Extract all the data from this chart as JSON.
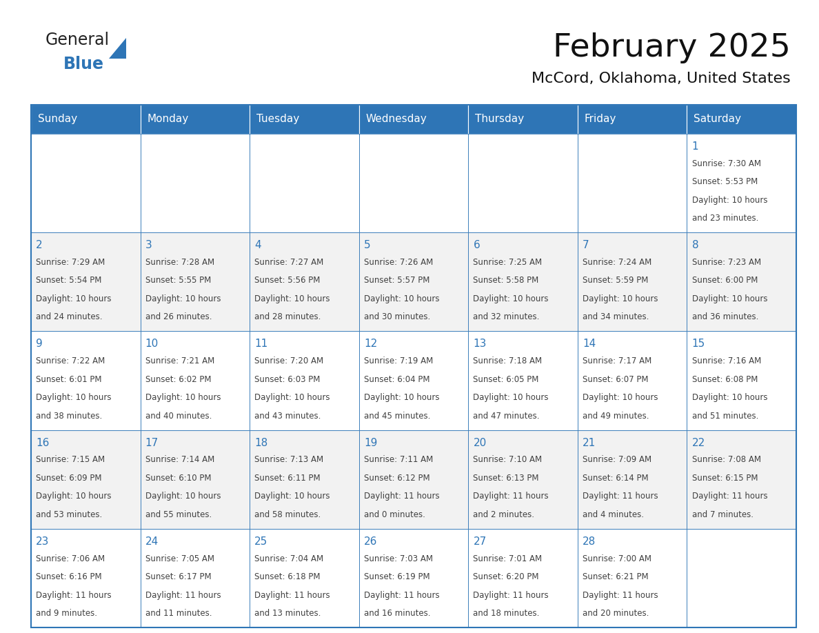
{
  "title": "February 2025",
  "subtitle": "McCord, Oklahoma, United States",
  "header_bg": "#2E75B6",
  "header_text_color": "#FFFFFF",
  "day_names": [
    "Sunday",
    "Monday",
    "Tuesday",
    "Wednesday",
    "Thursday",
    "Friday",
    "Saturday"
  ],
  "row_bg_even": "#DDEEFF",
  "row_bg_light": "#F2F2F2",
  "row_bg_white": "#FFFFFF",
  "cell_border_color": "#2E75B6",
  "text_color": "#404040",
  "day_num_color": "#2E75B6",
  "calendar": [
    [
      null,
      null,
      null,
      null,
      null,
      null,
      {
        "day": 1,
        "sunrise": "7:30 AM",
        "sunset": "5:53 PM",
        "daylight_line1": "10 hours",
        "daylight_line2": "and 23 minutes."
      }
    ],
    [
      {
        "day": 2,
        "sunrise": "7:29 AM",
        "sunset": "5:54 PM",
        "daylight_line1": "10 hours",
        "daylight_line2": "and 24 minutes."
      },
      {
        "day": 3,
        "sunrise": "7:28 AM",
        "sunset": "5:55 PM",
        "daylight_line1": "10 hours",
        "daylight_line2": "and 26 minutes."
      },
      {
        "day": 4,
        "sunrise": "7:27 AM",
        "sunset": "5:56 PM",
        "daylight_line1": "10 hours",
        "daylight_line2": "and 28 minutes."
      },
      {
        "day": 5,
        "sunrise": "7:26 AM",
        "sunset": "5:57 PM",
        "daylight_line1": "10 hours",
        "daylight_line2": "and 30 minutes."
      },
      {
        "day": 6,
        "sunrise": "7:25 AM",
        "sunset": "5:58 PM",
        "daylight_line1": "10 hours",
        "daylight_line2": "and 32 minutes."
      },
      {
        "day": 7,
        "sunrise": "7:24 AM",
        "sunset": "5:59 PM",
        "daylight_line1": "10 hours",
        "daylight_line2": "and 34 minutes."
      },
      {
        "day": 8,
        "sunrise": "7:23 AM",
        "sunset": "6:00 PM",
        "daylight_line1": "10 hours",
        "daylight_line2": "and 36 minutes."
      }
    ],
    [
      {
        "day": 9,
        "sunrise": "7:22 AM",
        "sunset": "6:01 PM",
        "daylight_line1": "10 hours",
        "daylight_line2": "and 38 minutes."
      },
      {
        "day": 10,
        "sunrise": "7:21 AM",
        "sunset": "6:02 PM",
        "daylight_line1": "10 hours",
        "daylight_line2": "and 40 minutes."
      },
      {
        "day": 11,
        "sunrise": "7:20 AM",
        "sunset": "6:03 PM",
        "daylight_line1": "10 hours",
        "daylight_line2": "and 43 minutes."
      },
      {
        "day": 12,
        "sunrise": "7:19 AM",
        "sunset": "6:04 PM",
        "daylight_line1": "10 hours",
        "daylight_line2": "and 45 minutes."
      },
      {
        "day": 13,
        "sunrise": "7:18 AM",
        "sunset": "6:05 PM",
        "daylight_line1": "10 hours",
        "daylight_line2": "and 47 minutes."
      },
      {
        "day": 14,
        "sunrise": "7:17 AM",
        "sunset": "6:07 PM",
        "daylight_line1": "10 hours",
        "daylight_line2": "and 49 minutes."
      },
      {
        "day": 15,
        "sunrise": "7:16 AM",
        "sunset": "6:08 PM",
        "daylight_line1": "10 hours",
        "daylight_line2": "and 51 minutes."
      }
    ],
    [
      {
        "day": 16,
        "sunrise": "7:15 AM",
        "sunset": "6:09 PM",
        "daylight_line1": "10 hours",
        "daylight_line2": "and 53 minutes."
      },
      {
        "day": 17,
        "sunrise": "7:14 AM",
        "sunset": "6:10 PM",
        "daylight_line1": "10 hours",
        "daylight_line2": "and 55 minutes."
      },
      {
        "day": 18,
        "sunrise": "7:13 AM",
        "sunset": "6:11 PM",
        "daylight_line1": "10 hours",
        "daylight_line2": "and 58 minutes."
      },
      {
        "day": 19,
        "sunrise": "7:11 AM",
        "sunset": "6:12 PM",
        "daylight_line1": "11 hours",
        "daylight_line2": "and 0 minutes."
      },
      {
        "day": 20,
        "sunrise": "7:10 AM",
        "sunset": "6:13 PM",
        "daylight_line1": "11 hours",
        "daylight_line2": "and 2 minutes."
      },
      {
        "day": 21,
        "sunrise": "7:09 AM",
        "sunset": "6:14 PM",
        "daylight_line1": "11 hours",
        "daylight_line2": "and 4 minutes."
      },
      {
        "day": 22,
        "sunrise": "7:08 AM",
        "sunset": "6:15 PM",
        "daylight_line1": "11 hours",
        "daylight_line2": "and 7 minutes."
      }
    ],
    [
      {
        "day": 23,
        "sunrise": "7:06 AM",
        "sunset": "6:16 PM",
        "daylight_line1": "11 hours",
        "daylight_line2": "and 9 minutes."
      },
      {
        "day": 24,
        "sunrise": "7:05 AM",
        "sunset": "6:17 PM",
        "daylight_line1": "11 hours",
        "daylight_line2": "and 11 minutes."
      },
      {
        "day": 25,
        "sunrise": "7:04 AM",
        "sunset": "6:18 PM",
        "daylight_line1": "11 hours",
        "daylight_line2": "and 13 minutes."
      },
      {
        "day": 26,
        "sunrise": "7:03 AM",
        "sunset": "6:19 PM",
        "daylight_line1": "11 hours",
        "daylight_line2": "and 16 minutes."
      },
      {
        "day": 27,
        "sunrise": "7:01 AM",
        "sunset": "6:20 PM",
        "daylight_line1": "11 hours",
        "daylight_line2": "and 18 minutes."
      },
      {
        "day": 28,
        "sunrise": "7:00 AM",
        "sunset": "6:21 PM",
        "daylight_line1": "11 hours",
        "daylight_line2": "and 20 minutes."
      },
      null
    ]
  ],
  "logo_text1": "General",
  "logo_text2": "Blue",
  "logo_color1": "#222222",
  "logo_color2": "#2E75B6",
  "logo_triangle_color": "#2E75B6"
}
